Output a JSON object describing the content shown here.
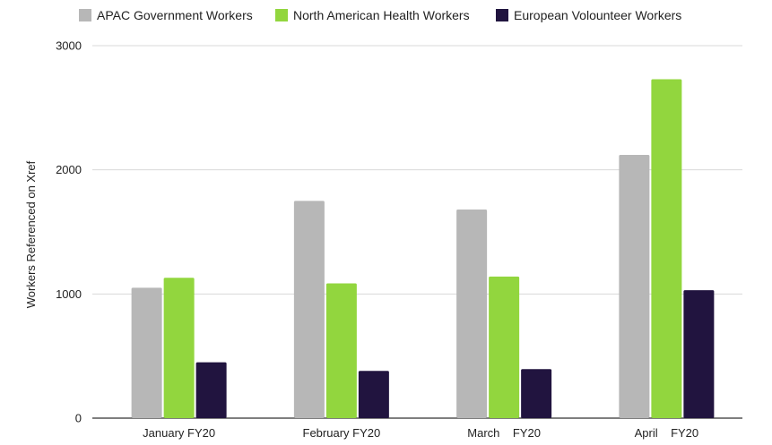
{
  "chart_data": {
    "type": "bar",
    "title": "",
    "xlabel": "",
    "ylabel": "Workers Referenced on Xref",
    "ylim": [
      0,
      3000
    ],
    "yticks": [
      0,
      1000,
      2000,
      3000
    ],
    "grid": true,
    "legend_position": "top",
    "categories": [
      "January FY20",
      "February FY20",
      "March    FY20",
      "April    FY20"
    ],
    "series": [
      {
        "name": "APAC Government Workers",
        "color": "#b7b7b7",
        "values": [
          1050,
          1750,
          1680,
          2120
        ]
      },
      {
        "name": "North American Health Workers",
        "color": "#92d63e",
        "values": [
          1130,
          1085,
          1140,
          2730
        ]
      },
      {
        "name": "European Volounteer Workers",
        "color": "#21143f",
        "values": [
          450,
          380,
          395,
          1030
        ]
      }
    ]
  }
}
